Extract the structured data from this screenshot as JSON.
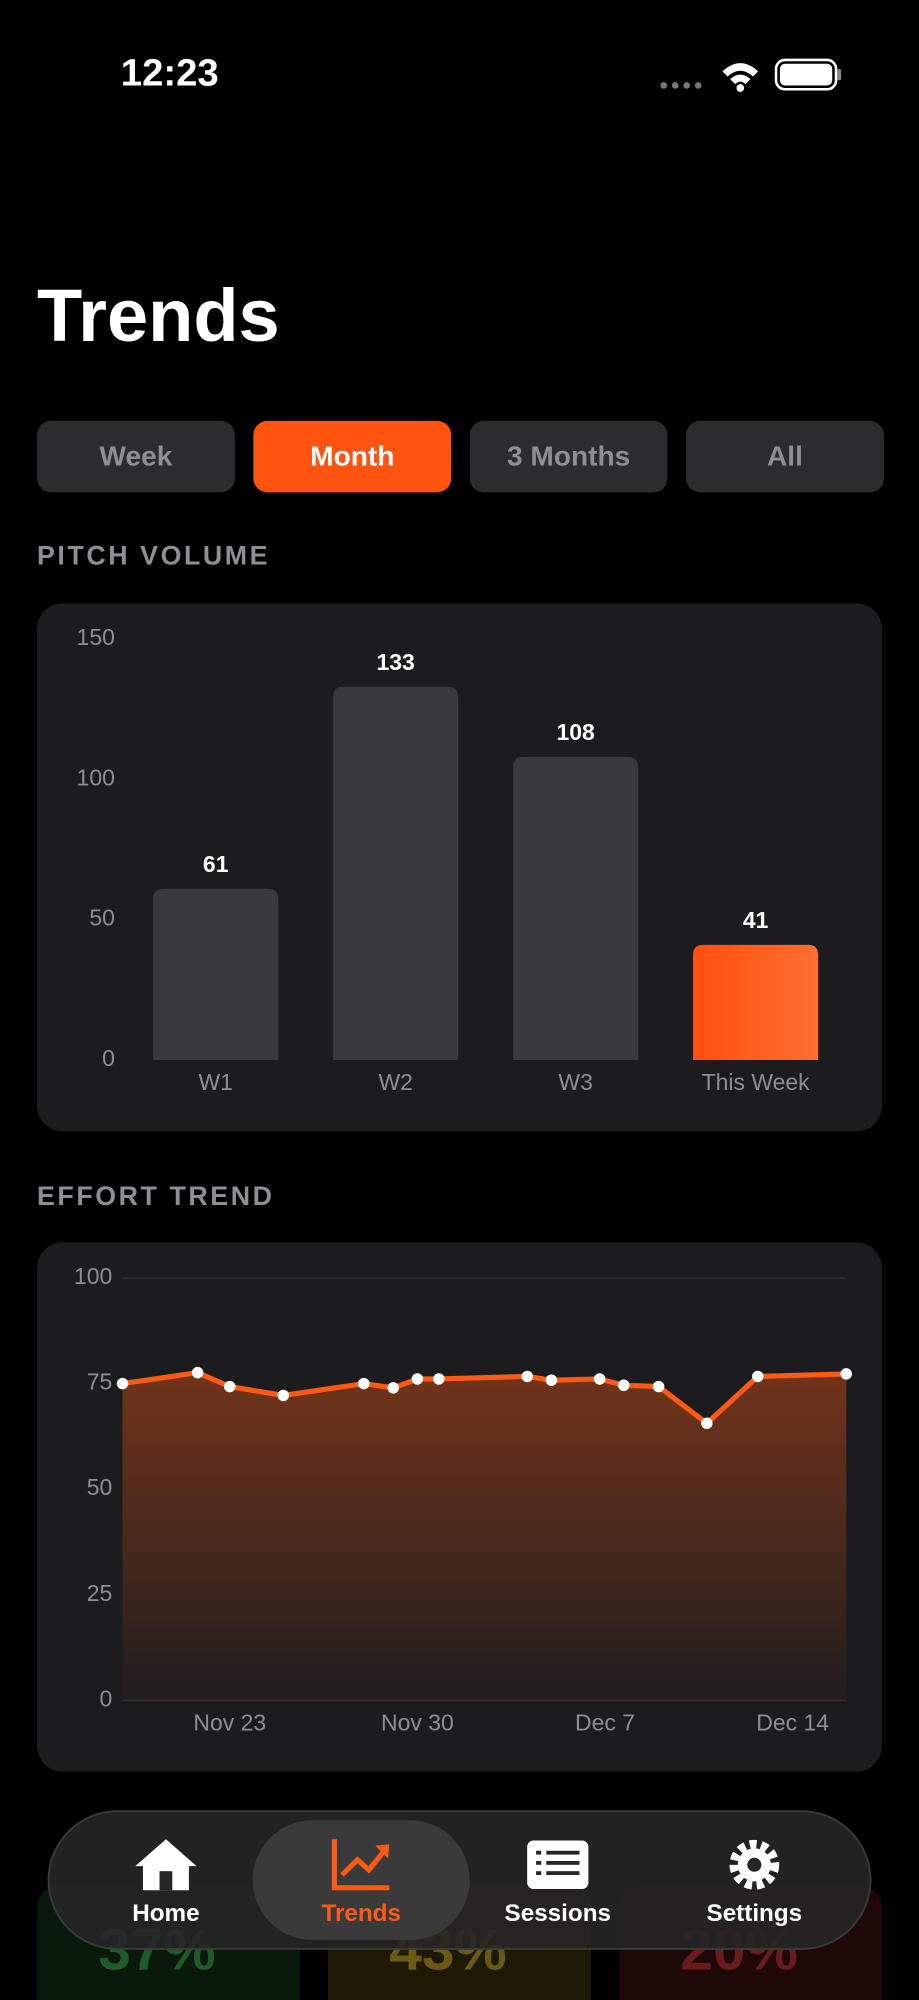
{
  "status_bar": {
    "time": "12:23"
  },
  "header": {
    "title": "Trends"
  },
  "range_tabs": {
    "options": [
      "Week",
      "Month",
      "3 Months",
      "All"
    ],
    "selected": 1
  },
  "chart_data": [
    {
      "type": "bar",
      "title": "PITCH VOLUME",
      "categories": [
        "W1",
        "W2",
        "W3",
        "This Week"
      ],
      "values": [
        61,
        133,
        108,
        41
      ],
      "colors": [
        "#3a3a3c",
        "#3a3a3c",
        "#3a3a3c",
        "#ff5a14"
      ],
      "ylim": [
        0,
        150
      ],
      "yticks": [
        0,
        50,
        100,
        150
      ]
    },
    {
      "type": "line",
      "title": "EFFORT TREND",
      "x": [
        0,
        2.8,
        4,
        6,
        9,
        10.1,
        11,
        11.8,
        15.1,
        16,
        17.8,
        18.7,
        20,
        21.8,
        23.7,
        27
      ],
      "values": [
        75,
        77.6,
        74.3,
        72.2,
        75,
        74,
        76.1,
        76.1,
        76.7,
        75.8,
        76.1,
        74.6,
        74.3,
        65.6,
        76.7,
        77.3
      ],
      "color": "#ff5a14",
      "xlim": [
        0,
        27
      ],
      "xticks": [
        {
          "value": 4,
          "label": "Nov 23"
        },
        {
          "value": 11,
          "label": "Nov 30"
        },
        {
          "value": 18,
          "label": "Dec 7"
        },
        {
          "value": 25,
          "label": "Dec 14"
        }
      ],
      "ylim": [
        0,
        100
      ],
      "yticks": [
        0,
        25,
        50,
        75,
        100
      ]
    }
  ],
  "breakdown": {
    "values": [
      "37%",
      "43%",
      "20%"
    ],
    "colors": [
      "#1f5a2a",
      "#6b5a12",
      "#6a1c1c"
    ]
  },
  "tab_bar": {
    "items": [
      "Home",
      "Trends",
      "Sessions",
      "Settings"
    ],
    "selected": 1
  }
}
